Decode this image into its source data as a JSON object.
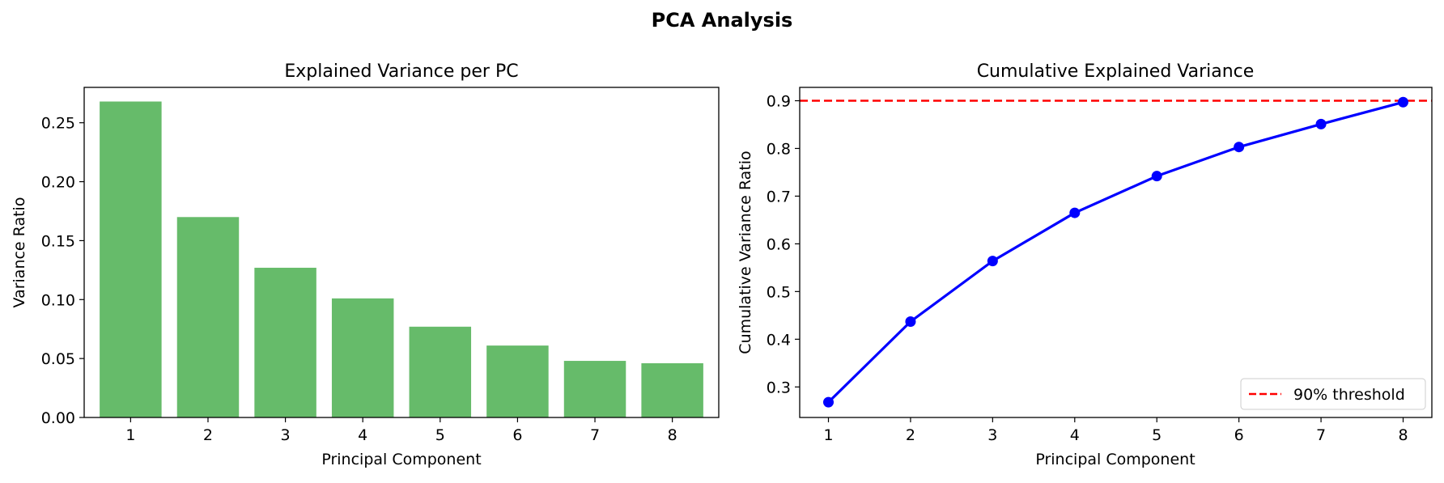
{
  "figure": {
    "title": "PCA Analysis"
  },
  "chart_data": [
    {
      "type": "bar",
      "title": "Explained Variance per PC",
      "xlabel": "Principal Component",
      "ylabel": "Variance Ratio",
      "categories": [
        "1",
        "2",
        "3",
        "4",
        "5",
        "6",
        "7",
        "8"
      ],
      "values": [
        0.268,
        0.17,
        0.127,
        0.101,
        0.077,
        0.061,
        0.048,
        0.046
      ],
      "ylim": [
        0,
        0.28
      ],
      "yticks": [
        0.0,
        0.05,
        0.1,
        0.15,
        0.2,
        0.25
      ],
      "ytick_labels": [
        "0.00",
        "0.05",
        "0.10",
        "0.15",
        "0.20",
        "0.25"
      ],
      "bar_color": "#66bb6a",
      "grid": false
    },
    {
      "type": "line",
      "title": "Cumulative Explained Variance",
      "xlabel": "Principal Component",
      "ylabel": "Cumulative Variance Ratio",
      "x": [
        1,
        2,
        3,
        4,
        5,
        6,
        7,
        8
      ],
      "x_tick_labels": [
        "1",
        "2",
        "3",
        "4",
        "5",
        "6",
        "7",
        "8"
      ],
      "y": [
        0.268,
        0.437,
        0.564,
        0.665,
        0.742,
        0.803,
        0.851,
        0.897
      ],
      "ylim": [
        0.236,
        0.928
      ],
      "yticks": [
        0.3,
        0.4,
        0.5,
        0.6,
        0.7,
        0.8,
        0.9
      ],
      "ytick_labels": [
        "0.3",
        "0.4",
        "0.5",
        "0.6",
        "0.7",
        "0.8",
        "0.9"
      ],
      "line_color": "#0000ff",
      "threshold": {
        "value": 0.9,
        "label": "90% threshold",
        "color": "#ff0000",
        "style": "dashed"
      },
      "legend": {
        "position": "lower-right",
        "entries": [
          "90% threshold"
        ]
      },
      "grid": false
    }
  ]
}
